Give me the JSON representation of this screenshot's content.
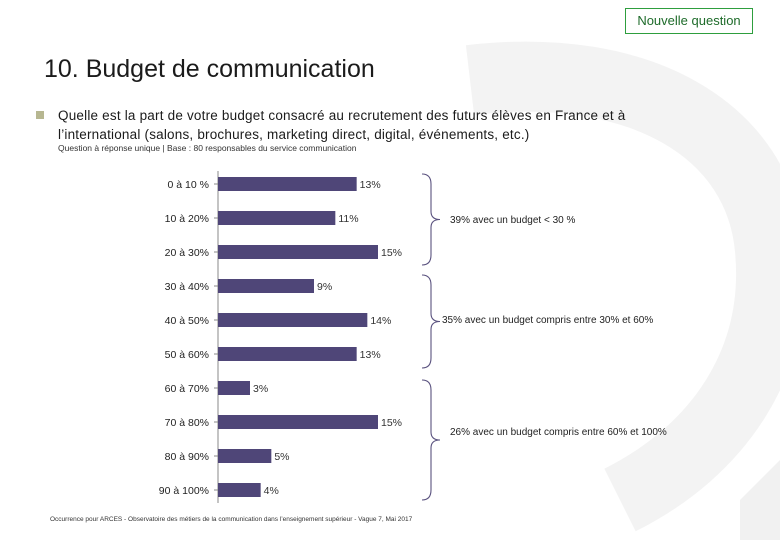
{
  "badge": "Nouvelle question",
  "title": "10. Budget de communication",
  "question": "Quelle est la part de votre budget consacré au recrutement des futurs élèves en France et à l’international (salons, brochures, marketing direct, digital, événements, etc.)",
  "base_note": "Question à réponse unique | Base : 80 responsables du service communication",
  "colors": {
    "bar": "#4f4678",
    "accent_green": "#2e9e3e"
  },
  "chart_data": {
    "type": "bar",
    "orientation": "horizontal",
    "categories": [
      "0 à 10 %",
      "10 à 20%",
      "20 à 30%",
      "30 à 40%",
      "40 à 50%",
      "50 à 60%",
      "60 à 70%",
      "70 à 80%",
      "80 à 90%",
      "90 à 100%"
    ],
    "values": [
      13,
      11,
      15,
      9,
      14,
      13,
      3,
      15,
      5,
      4
    ],
    "value_labels": [
      "13%",
      "11%",
      "15%",
      "9%",
      "14%",
      "13%",
      "3%",
      "15%",
      "5%",
      "4%"
    ],
    "xlim": [
      0,
      15
    ],
    "grid": false,
    "legend": "none"
  },
  "group_notes": [
    "39% avec un budget < 30 %",
    "35% avec un budget compris entre 30% et 60%",
    "26% avec un budget compris entre 60% et 100%"
  ],
  "footer": "Occurrence pour ARCES - Observatoire des métiers de la communication dans l’enseignement supérieur - Vague 7, Mai 2017"
}
